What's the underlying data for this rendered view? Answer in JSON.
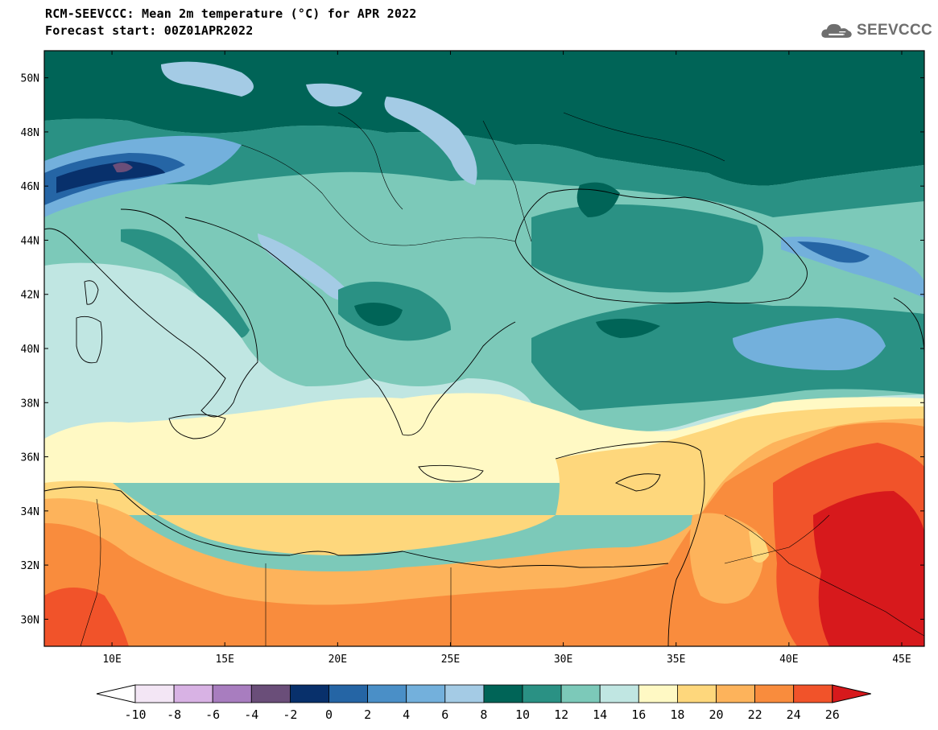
{
  "header": {
    "title": "RCM-SEEVCCC: Mean 2m temperature (°C) for APR 2022",
    "subtitle": "Forecast start: 00Z01APR2022"
  },
  "logo": {
    "text": "SEEVCCC",
    "icon": "cloud-icon"
  },
  "map": {
    "lon_range": [
      7,
      46
    ],
    "lat_range": [
      29,
      51
    ],
    "lat_ticks": [
      {
        "value": 50,
        "label": "50N"
      },
      {
        "value": 48,
        "label": "48N"
      },
      {
        "value": 46,
        "label": "46N"
      },
      {
        "value": 44,
        "label": "44N"
      },
      {
        "value": 42,
        "label": "42N"
      },
      {
        "value": 40,
        "label": "40N"
      },
      {
        "value": 38,
        "label": "38N"
      },
      {
        "value": 36,
        "label": "36N"
      },
      {
        "value": 34,
        "label": "34N"
      },
      {
        "value": 32,
        "label": "32N"
      },
      {
        "value": 30,
        "label": "30N"
      }
    ],
    "lon_ticks": [
      {
        "value": 10,
        "label": "10E"
      },
      {
        "value": 15,
        "label": "15E"
      },
      {
        "value": 20,
        "label": "20E"
      },
      {
        "value": 25,
        "label": "25E"
      },
      {
        "value": 30,
        "label": "30E"
      },
      {
        "value": 35,
        "label": "35E"
      },
      {
        "value": 40,
        "label": "40E"
      },
      {
        "value": 45,
        "label": "45E"
      }
    ]
  },
  "colorbar": {
    "labels": [
      "-10",
      "-8",
      "-6",
      "-4",
      "-2",
      "0",
      "2",
      "4",
      "6",
      "8",
      "10",
      "12",
      "14",
      "16",
      "18",
      "20",
      "22",
      "24",
      "26"
    ],
    "low_arrow_color": "#ffffff",
    "high_arrow_color": "#d7191c",
    "colors": [
      "#f3e6f5",
      "#d8b2e4",
      "#a87dbf",
      "#6a4e79",
      "#08306b",
      "#2565a5",
      "#4a8fc7",
      "#73b0dc",
      "#a4cbe5",
      "#006457",
      "#2a9184",
      "#7cc9b9",
      "#c0e6e2",
      "#fff9c4",
      "#fed77c",
      "#fdb35b",
      "#f98c3d",
      "#f1532a"
    ]
  },
  "chart_data": {
    "type": "heatmap",
    "title": "RCM-SEEVCCC: Mean 2m temperature (°C) for APR 2022",
    "subtitle": "Forecast start: 00Z01APR2022",
    "xlabel": "",
    "ylabel": "",
    "x_range": [
      7,
      46
    ],
    "y_range": [
      29,
      51
    ],
    "legend": "bottom colorbar",
    "levels": [
      -10,
      -8,
      -6,
      -4,
      -2,
      0,
      2,
      4,
      6,
      8,
      10,
      12,
      14,
      16,
      18,
      20,
      22,
      24,
      26
    ]
  }
}
